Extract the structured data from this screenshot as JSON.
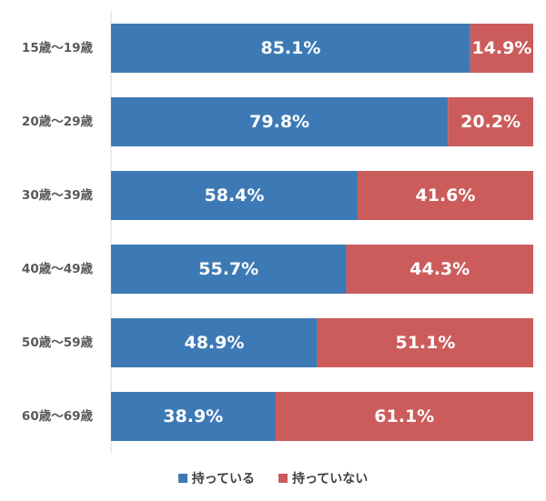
{
  "chart_data": {
    "type": "bar",
    "orientation": "horizontal",
    "stacked": true,
    "categories": [
      "15歳〜19歳",
      "20歳〜29歳",
      "30歳〜39歳",
      "40歳〜49歳",
      "50歳〜59歳",
      "60歳〜69歳"
    ],
    "series": [
      {
        "name": "持っている",
        "color": "#3d7ab5",
        "values": [
          85.1,
          79.8,
          58.4,
          55.7,
          48.9,
          38.9
        ],
        "labels": [
          "85.1%",
          "79.8%",
          "58.4%",
          "55.7%",
          "48.9%",
          "38.9%"
        ]
      },
      {
        "name": "持っていない",
        "color": "#cc5c5c",
        "values": [
          14.9,
          20.2,
          41.6,
          44.3,
          51.1,
          61.1
        ],
        "labels": [
          "14.9%",
          "20.2%",
          "41.6%",
          "44.3%",
          "51.1%",
          "61.1%"
        ]
      }
    ],
    "xlim": [
      0,
      100
    ],
    "title": "",
    "xlabel": "",
    "ylabel": "",
    "grid": false,
    "legend_position": "bottom"
  }
}
